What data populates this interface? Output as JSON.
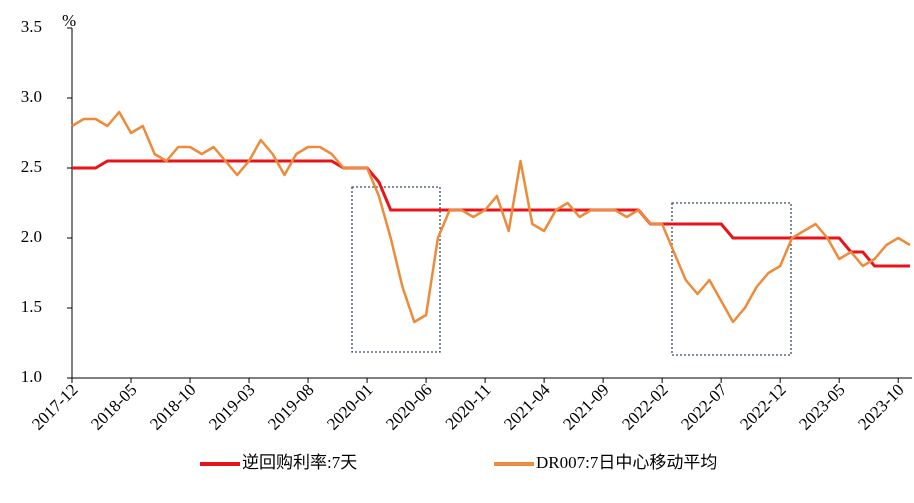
{
  "chart_data": {
    "type": "line",
    "y_label": "%",
    "x": [
      "2017-12",
      "2018-01",
      "2018-02",
      "2018-03",
      "2018-04",
      "2018-05",
      "2018-06",
      "2018-07",
      "2018-08",
      "2018-09",
      "2018-10",
      "2018-11",
      "2018-12",
      "2019-01",
      "2019-02",
      "2019-03",
      "2019-04",
      "2019-05",
      "2019-06",
      "2019-07",
      "2019-08",
      "2019-09",
      "2019-10",
      "2019-11",
      "2019-12",
      "2020-01",
      "2020-02",
      "2020-03",
      "2020-04",
      "2020-05",
      "2020-06",
      "2020-07",
      "2020-08",
      "2020-09",
      "2020-10",
      "2020-11",
      "2020-12",
      "2021-01",
      "2021-02",
      "2021-03",
      "2021-04",
      "2021-05",
      "2021-06",
      "2021-07",
      "2021-08",
      "2021-09",
      "2021-10",
      "2021-11",
      "2021-12",
      "2022-01",
      "2022-02",
      "2022-03",
      "2022-04",
      "2022-05",
      "2022-06",
      "2022-07",
      "2022-08",
      "2022-09",
      "2022-10",
      "2022-11",
      "2022-12",
      "2023-01",
      "2023-02",
      "2023-03",
      "2023-04",
      "2023-05",
      "2023-06",
      "2023-07",
      "2023-08",
      "2023-09",
      "2023-10",
      "2023-11"
    ],
    "xticks": [
      "2017-12",
      "2018-05",
      "2018-10",
      "2019-03",
      "2019-08",
      "2020-01",
      "2020-06",
      "2020-11",
      "2021-04",
      "2021-09",
      "2022-02",
      "2022-07",
      "2022-12",
      "2023-05",
      "2023-10"
    ],
    "series": [
      {
        "name": "逆回购利率:7天",
        "color": "#e8141a",
        "values": [
          2.5,
          2.5,
          2.5,
          2.55,
          2.55,
          2.55,
          2.55,
          2.55,
          2.55,
          2.55,
          2.55,
          2.55,
          2.55,
          2.55,
          2.55,
          2.55,
          2.55,
          2.55,
          2.55,
          2.55,
          2.55,
          2.55,
          2.55,
          2.5,
          2.5,
          2.5,
          2.4,
          2.2,
          2.2,
          2.2,
          2.2,
          2.2,
          2.2,
          2.2,
          2.2,
          2.2,
          2.2,
          2.2,
          2.2,
          2.2,
          2.2,
          2.2,
          2.2,
          2.2,
          2.2,
          2.2,
          2.2,
          2.2,
          2.2,
          2.1,
          2.1,
          2.1,
          2.1,
          2.1,
          2.1,
          2.1,
          2.0,
          2.0,
          2.0,
          2.0,
          2.0,
          2.0,
          2.0,
          2.0,
          2.0,
          2.0,
          1.9,
          1.9,
          1.8,
          1.8,
          1.8,
          1.8
        ]
      },
      {
        "name": "DR007:7日中心移动平均",
        "color": "#ed8b3a",
        "values": [
          2.8,
          2.85,
          2.85,
          2.8,
          2.9,
          2.75,
          2.8,
          2.6,
          2.55,
          2.65,
          2.65,
          2.6,
          2.65,
          2.55,
          2.45,
          2.55,
          2.7,
          2.6,
          2.45,
          2.6,
          2.65,
          2.65,
          2.6,
          2.5,
          2.5,
          2.5,
          2.3,
          2.0,
          1.65,
          1.4,
          1.45,
          2.0,
          2.2,
          2.2,
          2.15,
          2.2,
          2.3,
          2.05,
          2.55,
          2.1,
          2.05,
          2.2,
          2.25,
          2.15,
          2.2,
          2.2,
          2.2,
          2.15,
          2.2,
          2.1,
          2.1,
          1.9,
          1.7,
          1.6,
          1.7,
          1.55,
          1.4,
          1.5,
          1.65,
          1.75,
          1.8,
          2.0,
          2.05,
          2.1,
          2.0,
          1.85,
          1.9,
          1.8,
          1.85,
          1.95,
          2.0,
          1.95
        ]
      }
    ],
    "ylim": [
      1.0,
      3.5
    ],
    "yticks": [
      {
        "value": 1,
        "label": "1.0"
      },
      1.5,
      {
        "value": 2,
        "label": "2.0"
      },
      2.5,
      {
        "value": 3,
        "label": "3.0"
      },
      3.5
    ],
    "grid": false,
    "legend": "bottom"
  }
}
